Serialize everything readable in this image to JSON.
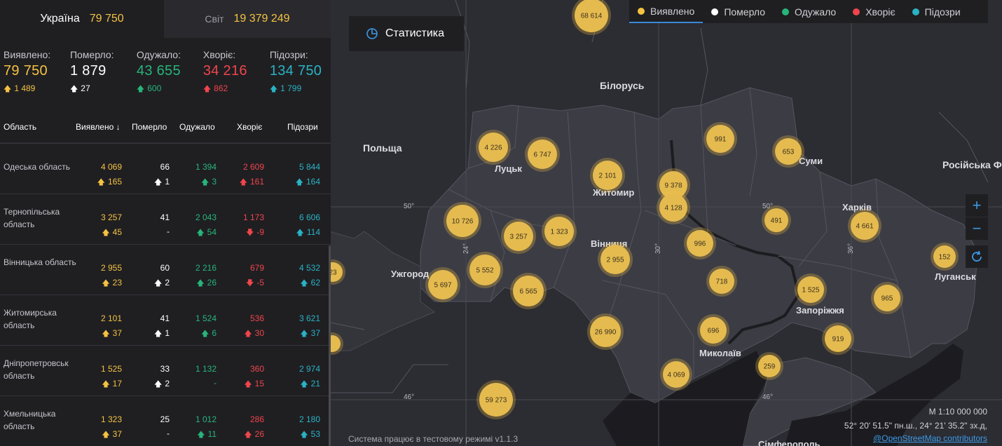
{
  "tabs": [
    {
      "label": "Україна",
      "value": "79 750"
    },
    {
      "label": "Світ",
      "value": "19 379 249"
    }
  ],
  "totals": [
    {
      "label": "Виявлено:",
      "value": "79 750",
      "delta": "1 489",
      "color": "y"
    },
    {
      "label": "Померло:",
      "value": "1 879",
      "delta": "27",
      "color": "w"
    },
    {
      "label": "Одужало:",
      "value": "43 655",
      "delta": "600",
      "color": "g"
    },
    {
      "label": "Хворіє:",
      "value": "34 216",
      "delta": "862",
      "color": "r"
    },
    {
      "label": "Підозри:",
      "value": "134 750",
      "delta": "1 799",
      "color": "c"
    }
  ],
  "table_headers": {
    "region": "Область",
    "detected": "Виявлено ↓",
    "deaths": "Померло",
    "recovered": "Одужало",
    "sick": "Хворіє",
    "suspected": "Підозри"
  },
  "rows": [
    {
      "name": "Одеська область",
      "v": [
        "4 069",
        "66",
        "1 394",
        "2 609",
        "5 844"
      ],
      "d": [
        "165",
        "1",
        "3",
        "161",
        "164"
      ],
      "dd": [
        "u",
        "u",
        "u",
        "u",
        "u"
      ]
    },
    {
      "name": "Тернопільська область",
      "v": [
        "3 257",
        "41",
        "2 043",
        "1 173",
        "6 606"
      ],
      "d": [
        "45",
        "-",
        "54",
        "-9",
        "114"
      ],
      "dd": [
        "u",
        "n",
        "u",
        "d",
        "u"
      ]
    },
    {
      "name": "Вінницька область",
      "v": [
        "2 955",
        "60",
        "2 216",
        "679",
        "4 532"
      ],
      "d": [
        "23",
        "2",
        "26",
        "-5",
        "62"
      ],
      "dd": [
        "u",
        "u",
        "u",
        "d",
        "u"
      ]
    },
    {
      "name": "Житомирська область",
      "v": [
        "2 101",
        "41",
        "1 524",
        "536",
        "3 621"
      ],
      "d": [
        "37",
        "1",
        "6",
        "30",
        "37"
      ],
      "dd": [
        "u",
        "u",
        "u",
        "u",
        "u"
      ]
    },
    {
      "name": "Дніпропетровськ область",
      "v": [
        "1 525",
        "33",
        "1 132",
        "360",
        "2 974"
      ],
      "d": [
        "17",
        "2",
        "-",
        "15",
        "21"
      ],
      "dd": [
        "u",
        "u",
        "n",
        "u",
        "u"
      ]
    },
    {
      "name": "Хмельницька область",
      "v": [
        "1 323",
        "25",
        "1 012",
        "286",
        "2 180"
      ],
      "d": [
        "37",
        "-",
        "11",
        "26",
        "53"
      ],
      "dd": [
        "u",
        "n",
        "u",
        "u",
        "u"
      ]
    }
  ],
  "stat_button": "Статистика",
  "legend": [
    {
      "label": "Виявлено",
      "color": "#f5c242",
      "active": true
    },
    {
      "label": "Померло",
      "color": "#ffffff",
      "active": false
    },
    {
      "label": "Одужало",
      "color": "#27b57a",
      "active": false
    },
    {
      "label": "Хворіє",
      "color": "#f0454c",
      "active": false
    },
    {
      "label": "Підозри",
      "color": "#29b3c4",
      "active": false
    }
  ],
  "map_labels": [
    "Польща",
    "Білорусь",
    "Російська Ф",
    "Луцьк",
    "Житомир",
    "Вінниця",
    "Ужгород",
    "Суми",
    "Харків",
    "Луганськ",
    "Запоріжжя",
    "Миколаїв",
    "Сімферополь"
  ],
  "grid_labels": [
    "50°",
    "50°",
    "46°",
    "46°",
    "24°",
    "30°",
    "36°"
  ],
  "clusters": [
    "68 614",
    "4 226",
    "6 747",
    "2 101",
    "9 378",
    "4 128",
    "991",
    "653",
    "10 726",
    "3 257",
    "1 323",
    "2 955",
    "996",
    "491",
    "4 661",
    "152",
    "5 552",
    "5 697",
    "6 565",
    "718",
    "1 525",
    "965",
    "26 990",
    "696",
    "919",
    "259",
    "4 069",
    "59 273",
    "23",
    ""
  ],
  "scale": "M 1:10 000 000",
  "coords": "52° 20' 51.5\" пн.ш., 24° 21' 35.2\" зх.д,",
  "osm": "@OpenStreetMap contributors",
  "system_message": "Система працює в тестовому режимі v1.1.3",
  "colors": {
    "accent": "#f5c242",
    "bg": "#1f1f22",
    "map": "#2c2c33"
  }
}
